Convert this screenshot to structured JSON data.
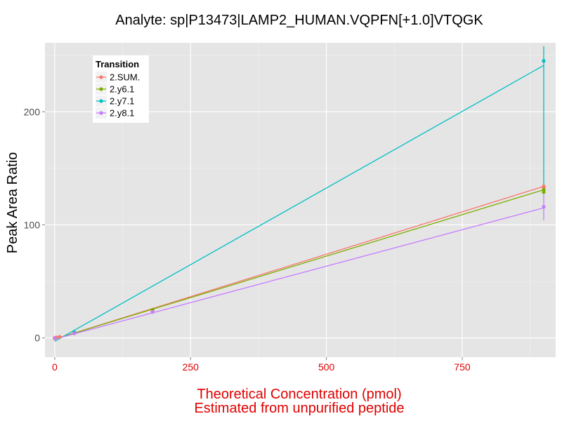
{
  "chart_data": {
    "type": "line",
    "title": "Analyte: sp|P13473|LAMP2_HUMAN.VQPFN[+1.0]VTQGK",
    "ylabel": "Peak Area Ratio",
    "xlabel_lines": [
      "Theoretical Concentration (pmol)",
      "Estimated from unpurified peptide"
    ],
    "xlim": [
      -18,
      922
    ],
    "ylim": [
      -17,
      261
    ],
    "x_ticks": [
      0,
      250,
      500,
      750
    ],
    "y_ticks": [
      0,
      100,
      200
    ],
    "x_tick_labels": [
      "0",
      "250",
      "500",
      "750"
    ],
    "y_tick_labels": [
      "0",
      "100",
      "200"
    ],
    "grid": true,
    "legend": {
      "title": "Transition",
      "placement": "top-left",
      "entries": [
        "2.SUM.",
        "2.y6.1",
        "2.y7.1",
        "2.y8.1"
      ]
    },
    "series": [
      {
        "name": "2.SUM.",
        "color": "#F8766D",
        "fit": [
          [
            0,
            -1
          ],
          [
            900,
            134
          ]
        ],
        "points": [
          [
            0,
            0
          ],
          [
            0,
            -0.5
          ],
          [
            3,
            0.5
          ],
          [
            9,
            1
          ],
          [
            36,
            5
          ],
          [
            180,
            24
          ],
          [
            180,
            23
          ],
          [
            900,
            134
          ],
          [
            900,
            133
          ]
        ],
        "error_bars": []
      },
      {
        "name": "2.y6.1",
        "color": "#7CAE00",
        "fit": [
          [
            0,
            -1
          ],
          [
            900,
            131
          ]
        ],
        "points": [
          [
            0,
            0
          ],
          [
            36,
            5
          ],
          [
            180,
            25
          ],
          [
            900,
            131
          ],
          [
            900,
            129
          ]
        ],
        "error_bars": []
      },
      {
        "name": "2.y7.1",
        "color": "#00BFC4",
        "fit": [
          [
            0,
            -3
          ],
          [
            900,
            241
          ]
        ],
        "points": [
          [
            36,
            5
          ],
          [
            900,
            245
          ]
        ],
        "error_bars": [
          [
            900,
            134,
            258
          ]
        ]
      },
      {
        "name": "2.y8.1",
        "color": "#C77CFF",
        "fit": [
          [
            0,
            -1
          ],
          [
            900,
            115
          ]
        ],
        "points": [
          [
            0,
            0
          ],
          [
            36,
            4
          ],
          [
            180,
            23
          ],
          [
            900,
            116
          ]
        ],
        "error_bars": [
          [
            900,
            104,
            128
          ]
        ]
      }
    ]
  },
  "colors": {
    "panel_background": "#E5E5E5",
    "grid_major": "#FFFFFF",
    "grid_minor": "#F2F2F2",
    "x_axis_text": "#E00000",
    "y_axis_text": "#4D4D4D"
  }
}
